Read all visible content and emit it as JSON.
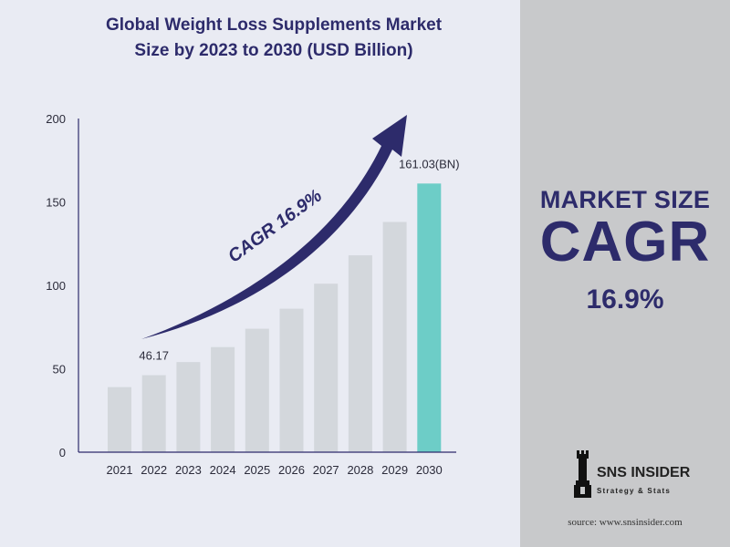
{
  "colors": {
    "panel_bg": "#e9ebf3",
    "side_bg": "#c8c9cb",
    "bar": "#d3d7dc",
    "highlight_bar": "#6dcdc7",
    "navy": "#2d2b6b"
  },
  "chart_data": {
    "type": "bar",
    "title_line1": "Global Weight Loss Supplements Market",
    "title_line2": "Size by 2023 to 2030 (USD Billion)",
    "categories": [
      "2021",
      "2022",
      "2023",
      "2024",
      "2025",
      "2026",
      "2027",
      "2028",
      "2029",
      "2030"
    ],
    "values": [
      39,
      46.17,
      54,
      63,
      74,
      86,
      101,
      118,
      138,
      161.03
    ],
    "highlight_index": 9,
    "ylim": [
      0,
      200
    ],
    "yticks": [
      0,
      50,
      100,
      150,
      200
    ],
    "data_labels": [
      {
        "index": 1,
        "text": "46.17"
      },
      {
        "index": 9,
        "text": "161.03(BN)"
      }
    ],
    "annotation": "CAGR 16.9%",
    "grid": false
  },
  "side": {
    "market_size_label": "MARKET SIZE",
    "cagr_label": "CAGR",
    "cagr_value": "16.9%"
  },
  "logo": {
    "name": "SNS INSIDER",
    "tagline": "Strategy & Stats",
    "icon": "chess-rook-icon"
  },
  "source": "source: www.snsinsider.com"
}
